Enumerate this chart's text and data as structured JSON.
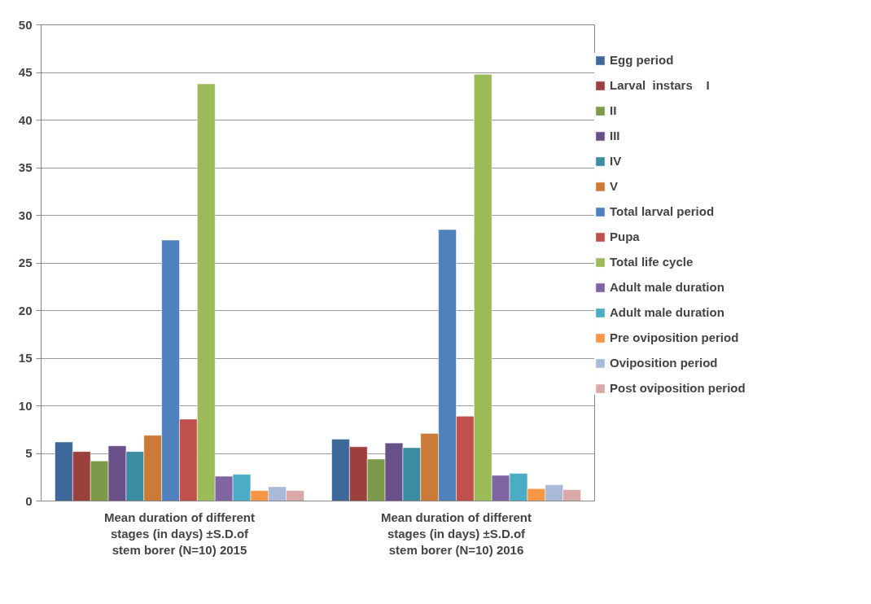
{
  "chart_data": {
    "type": "bar",
    "categories": [
      "Mean duration of different stages (in days) ±S.D.of stem borer (N=10) 2015",
      "Mean duration of different stages (in days) ±S.D.of stem borer (N=10) 2016"
    ],
    "ylim": [
      0,
      50
    ],
    "yticks": [
      0,
      5,
      10,
      15,
      20,
      25,
      30,
      35,
      40,
      45,
      50
    ],
    "grid": "y",
    "legend": "right",
    "series": [
      {
        "name": "Egg period",
        "color": "#3d6899",
        "values": [
          6.2,
          6.5
        ]
      },
      {
        "name": "Larval  instars    I",
        "color": "#9c403e",
        "values": [
          5.2,
          5.7
        ]
      },
      {
        "name": "II",
        "color": "#7d9a48",
        "values": [
          4.2,
          4.4
        ]
      },
      {
        "name": "III",
        "color": "#6a5089",
        "values": [
          5.8,
          6.1
        ]
      },
      {
        "name": "IV",
        "color": "#3a8ca1",
        "values": [
          5.2,
          5.6
        ]
      },
      {
        "name": "V",
        "color": "#cb7b37",
        "values": [
          6.9,
          7.1
        ]
      },
      {
        "name": "Total larval period",
        "color": "#4f81bd",
        "values": [
          27.4,
          28.5
        ]
      },
      {
        "name": "Pupa",
        "color": "#c0504d",
        "values": [
          8.6,
          8.9
        ]
      },
      {
        "name": "Total life cycle",
        "color": "#9bbb59",
        "values": [
          43.8,
          44.8
        ]
      },
      {
        "name": "Adult male duration",
        "color": "#8064a2",
        "values": [
          2.6,
          2.7
        ]
      },
      {
        "name": "Adult male duration",
        "color": "#4bacc6",
        "values": [
          2.8,
          2.9
        ]
      },
      {
        "name": "Pre oviposition period",
        "color": "#f79646",
        "values": [
          1.1,
          1.3
        ]
      },
      {
        "name": "Oviposition period",
        "color": "#a9b9d8",
        "values": [
          1.5,
          1.7
        ]
      },
      {
        "name": "Post oviposition period",
        "color": "#d9a8a7",
        "values": [
          1.1,
          1.2
        ]
      }
    ]
  }
}
